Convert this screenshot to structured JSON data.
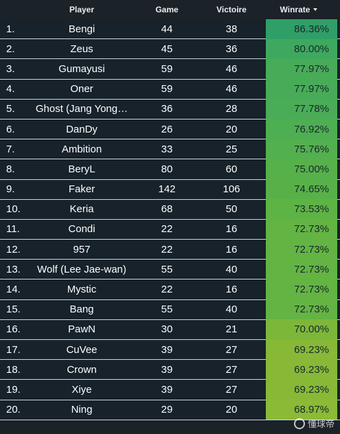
{
  "headers": {
    "player": "Player",
    "game": "Game",
    "victoire": "Victoire",
    "winrate": "Winrate"
  },
  "rows": [
    {
      "rank": "1.",
      "player": "Bengi",
      "game": "44",
      "victoire": "38",
      "winrate": "86.36%",
      "color": "#2f9f67"
    },
    {
      "rank": "2.",
      "player": "Zeus",
      "game": "45",
      "victoire": "36",
      "winrate": "80.00%",
      "color": "#3fa85f"
    },
    {
      "rank": "3.",
      "player": "Gumayusi",
      "game": "59",
      "victoire": "46",
      "winrate": "77.97%",
      "color": "#48ab58"
    },
    {
      "rank": "4.",
      "player": "Oner",
      "game": "59",
      "victoire": "46",
      "winrate": "77.97%",
      "color": "#48ab58"
    },
    {
      "rank": "5.",
      "player": "Ghost (Jang Yong…",
      "game": "36",
      "victoire": "28",
      "winrate": "77.78%",
      "color": "#4aac57"
    },
    {
      "rank": "6.",
      "player": "DanDy",
      "game": "26",
      "victoire": "20",
      "winrate": "76.92%",
      "color": "#4eae52"
    },
    {
      "rank": "7.",
      "player": "Ambition",
      "game": "33",
      "victoire": "25",
      "winrate": "75.76%",
      "color": "#53b04e"
    },
    {
      "rank": "8.",
      "player": "BeryL",
      "game": "80",
      "victoire": "60",
      "winrate": "75.00%",
      "color": "#57b14a"
    },
    {
      "rank": "9.",
      "player": "Faker",
      "game": "142",
      "victoire": "106",
      "winrate": "74.65%",
      "color": "#58b148"
    },
    {
      "rank": "10.",
      "player": "Keria",
      "game": "68",
      "victoire": "50",
      "winrate": "73.53%",
      "color": "#5eb345"
    },
    {
      "rank": "11.",
      "player": "Condi",
      "game": "22",
      "victoire": "16",
      "winrate": "72.73%",
      "color": "#63b443"
    },
    {
      "rank": "12.",
      "player": "957",
      "game": "22",
      "victoire": "16",
      "winrate": "72.73%",
      "color": "#63b443"
    },
    {
      "rank": "13.",
      "player": "Wolf (Lee Jae-wan)",
      "game": "55",
      "victoire": "40",
      "winrate": "72.73%",
      "color": "#63b443"
    },
    {
      "rank": "14.",
      "player": "Mystic",
      "game": "22",
      "victoire": "16",
      "winrate": "72.73%",
      "color": "#63b443"
    },
    {
      "rank": "15.",
      "player": "Bang",
      "game": "55",
      "victoire": "40",
      "winrate": "72.73%",
      "color": "#63b443"
    },
    {
      "rank": "16.",
      "player": "PawN",
      "game": "30",
      "victoire": "21",
      "winrate": "70.00%",
      "color": "#7db73a"
    },
    {
      "rank": "17.",
      "player": "CuVee",
      "game": "39",
      "victoire": "27",
      "winrate": "69.23%",
      "color": "#87b937"
    },
    {
      "rank": "18.",
      "player": "Crown",
      "game": "39",
      "victoire": "27",
      "winrate": "69.23%",
      "color": "#87b937"
    },
    {
      "rank": "19.",
      "player": "Xiye",
      "game": "39",
      "victoire": "27",
      "winrate": "69.23%",
      "color": "#87b937"
    },
    {
      "rank": "20.",
      "player": "Ning",
      "game": "29",
      "victoire": "20",
      "winrate": "68.97%",
      "color": "#8aba36"
    }
  ],
  "watermark": {
    "text": "懂球帝"
  }
}
